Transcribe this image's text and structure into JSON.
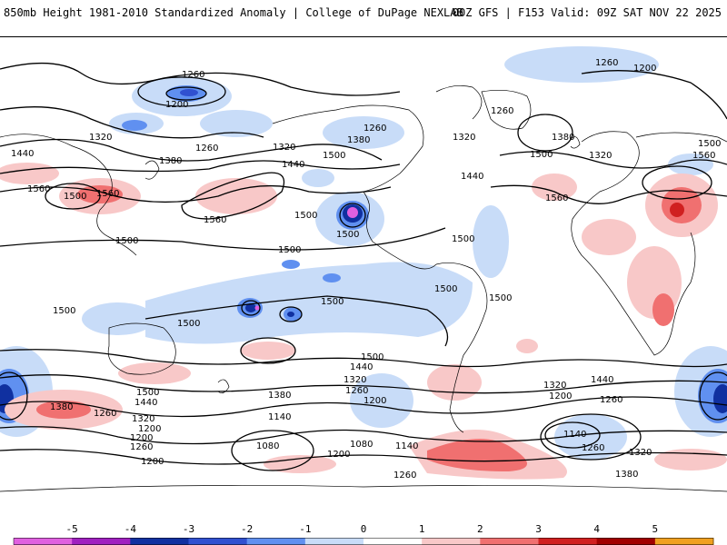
{
  "header": {
    "title": "850mb Height 1981-2010 Standardized Anomaly | College of DuPage NEXLAB",
    "run_info": "00Z GFS | F153 Valid: 09Z SAT NOV 22 2025"
  },
  "contour_labels": {
    "l1260a": "1260",
    "l1260b": "1260",
    "l1200a": "1200",
    "l1200b": "1200",
    "l1320a": "1320",
    "l1440a": "1440",
    "l1380a": "1380",
    "l1260c": "1260",
    "l1320b": "1320",
    "l1440b": "1440",
    "l1500a": "1500",
    "l1380b": "1380",
    "l1260d": "1260",
    "l1320c": "1320",
    "l1380c": "1380",
    "l1260e": "1260",
    "l1320d": "1320",
    "l1440c": "1440",
    "l1500b": "1500",
    "l1560a": "1560",
    "l1500c": "1500",
    "l1560b": "1560",
    "l1500d": "1500",
    "l1560c": "1560",
    "l1560d": "1560",
    "l1500e": "1500",
    "l1500f": "1500",
    "l1500g": "1500",
    "l1560e": "1560",
    "l1500h": "1500",
    "l1500i": "1500",
    "l1500j": "1500",
    "l1500k": "1500",
    "l1500l": "1500",
    "l1500m": "1500",
    "l1500n": "1500",
    "l1440d": "1440",
    "l1320e": "1320",
    "l1260f": "1260",
    "l1200c": "1200",
    "l1380d": "1380",
    "l1500o": "1500",
    "l1440e": "1440",
    "l1320f": "1320",
    "l1260g": "1260",
    "l1200d": "1200",
    "l1140a": "1140",
    "l1080a": "1080",
    "l1200e": "1200",
    "l1080b": "1080",
    "l1140b": "1140",
    "l1200f": "1200",
    "l1260h": "1260",
    "l1500p": "1500",
    "l1440f": "1440",
    "l1320g": "1320",
    "l1200g": "1200",
    "l1260i": "1260",
    "l1140c": "1140",
    "l1260j": "1260",
    "l1320h": "1320",
    "l1380e": "1380",
    "l1260k": "1260"
  },
  "colorbar": {
    "ticks": [
      "-5",
      "-4",
      "-3",
      "-2",
      "-1",
      "0",
      "1",
      "2",
      "3",
      "4",
      "5"
    ],
    "colors": [
      "#e060e0",
      "#a020c0",
      "#1030a0",
      "#3050d0",
      "#6090f0",
      "#c8dcf8",
      "#ffffff",
      "#f8c8c8",
      "#f07070",
      "#d02020",
      "#a00000",
      "#f0a020"
    ]
  }
}
